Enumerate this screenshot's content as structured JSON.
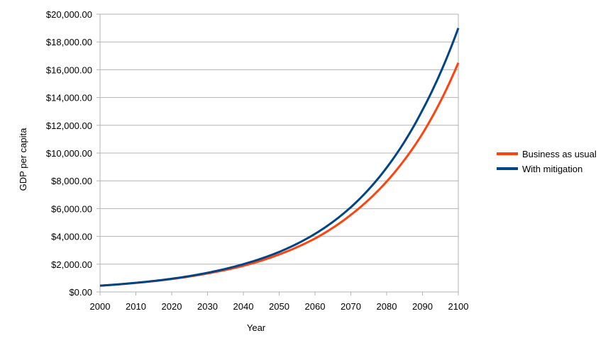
{
  "chart_data": {
    "type": "line",
    "title": "",
    "xlabel": "Year",
    "ylabel": "GDP per capita",
    "xlim": [
      2000,
      2100
    ],
    "ylim": [
      0,
      20000
    ],
    "x_ticks": [
      "2000",
      "2010",
      "2020",
      "2030",
      "2040",
      "2050",
      "2060",
      "2070",
      "2080",
      "2090",
      "2100"
    ],
    "y_ticks": [
      "$0.00",
      "$2,000.00",
      "$4,000.00",
      "$6,000.00",
      "$8,000.00",
      "$10,000.00",
      "$12,000.00",
      "$14,000.00",
      "$16,000.00",
      "$18,000.00",
      "$20,000.00"
    ],
    "grid": "horizontal",
    "legend_position": "right",
    "x": [
      2000,
      2010,
      2020,
      2030,
      2040,
      2050,
      2060,
      2070,
      2080,
      2090,
      2100
    ],
    "series": [
      {
        "name": "Business as usual",
        "color": "#ff420e",
        "values": [
          450,
          650,
          930,
          1330,
          1880,
          2700,
          3850,
          5550,
          7950,
          11400,
          16500
        ]
      },
      {
        "name": "With mitigation",
        "color": "#004586",
        "values": [
          450,
          660,
          950,
          1380,
          2000,
          2880,
          4180,
          6100,
          8950,
          13100,
          19000
        ]
      }
    ]
  }
}
